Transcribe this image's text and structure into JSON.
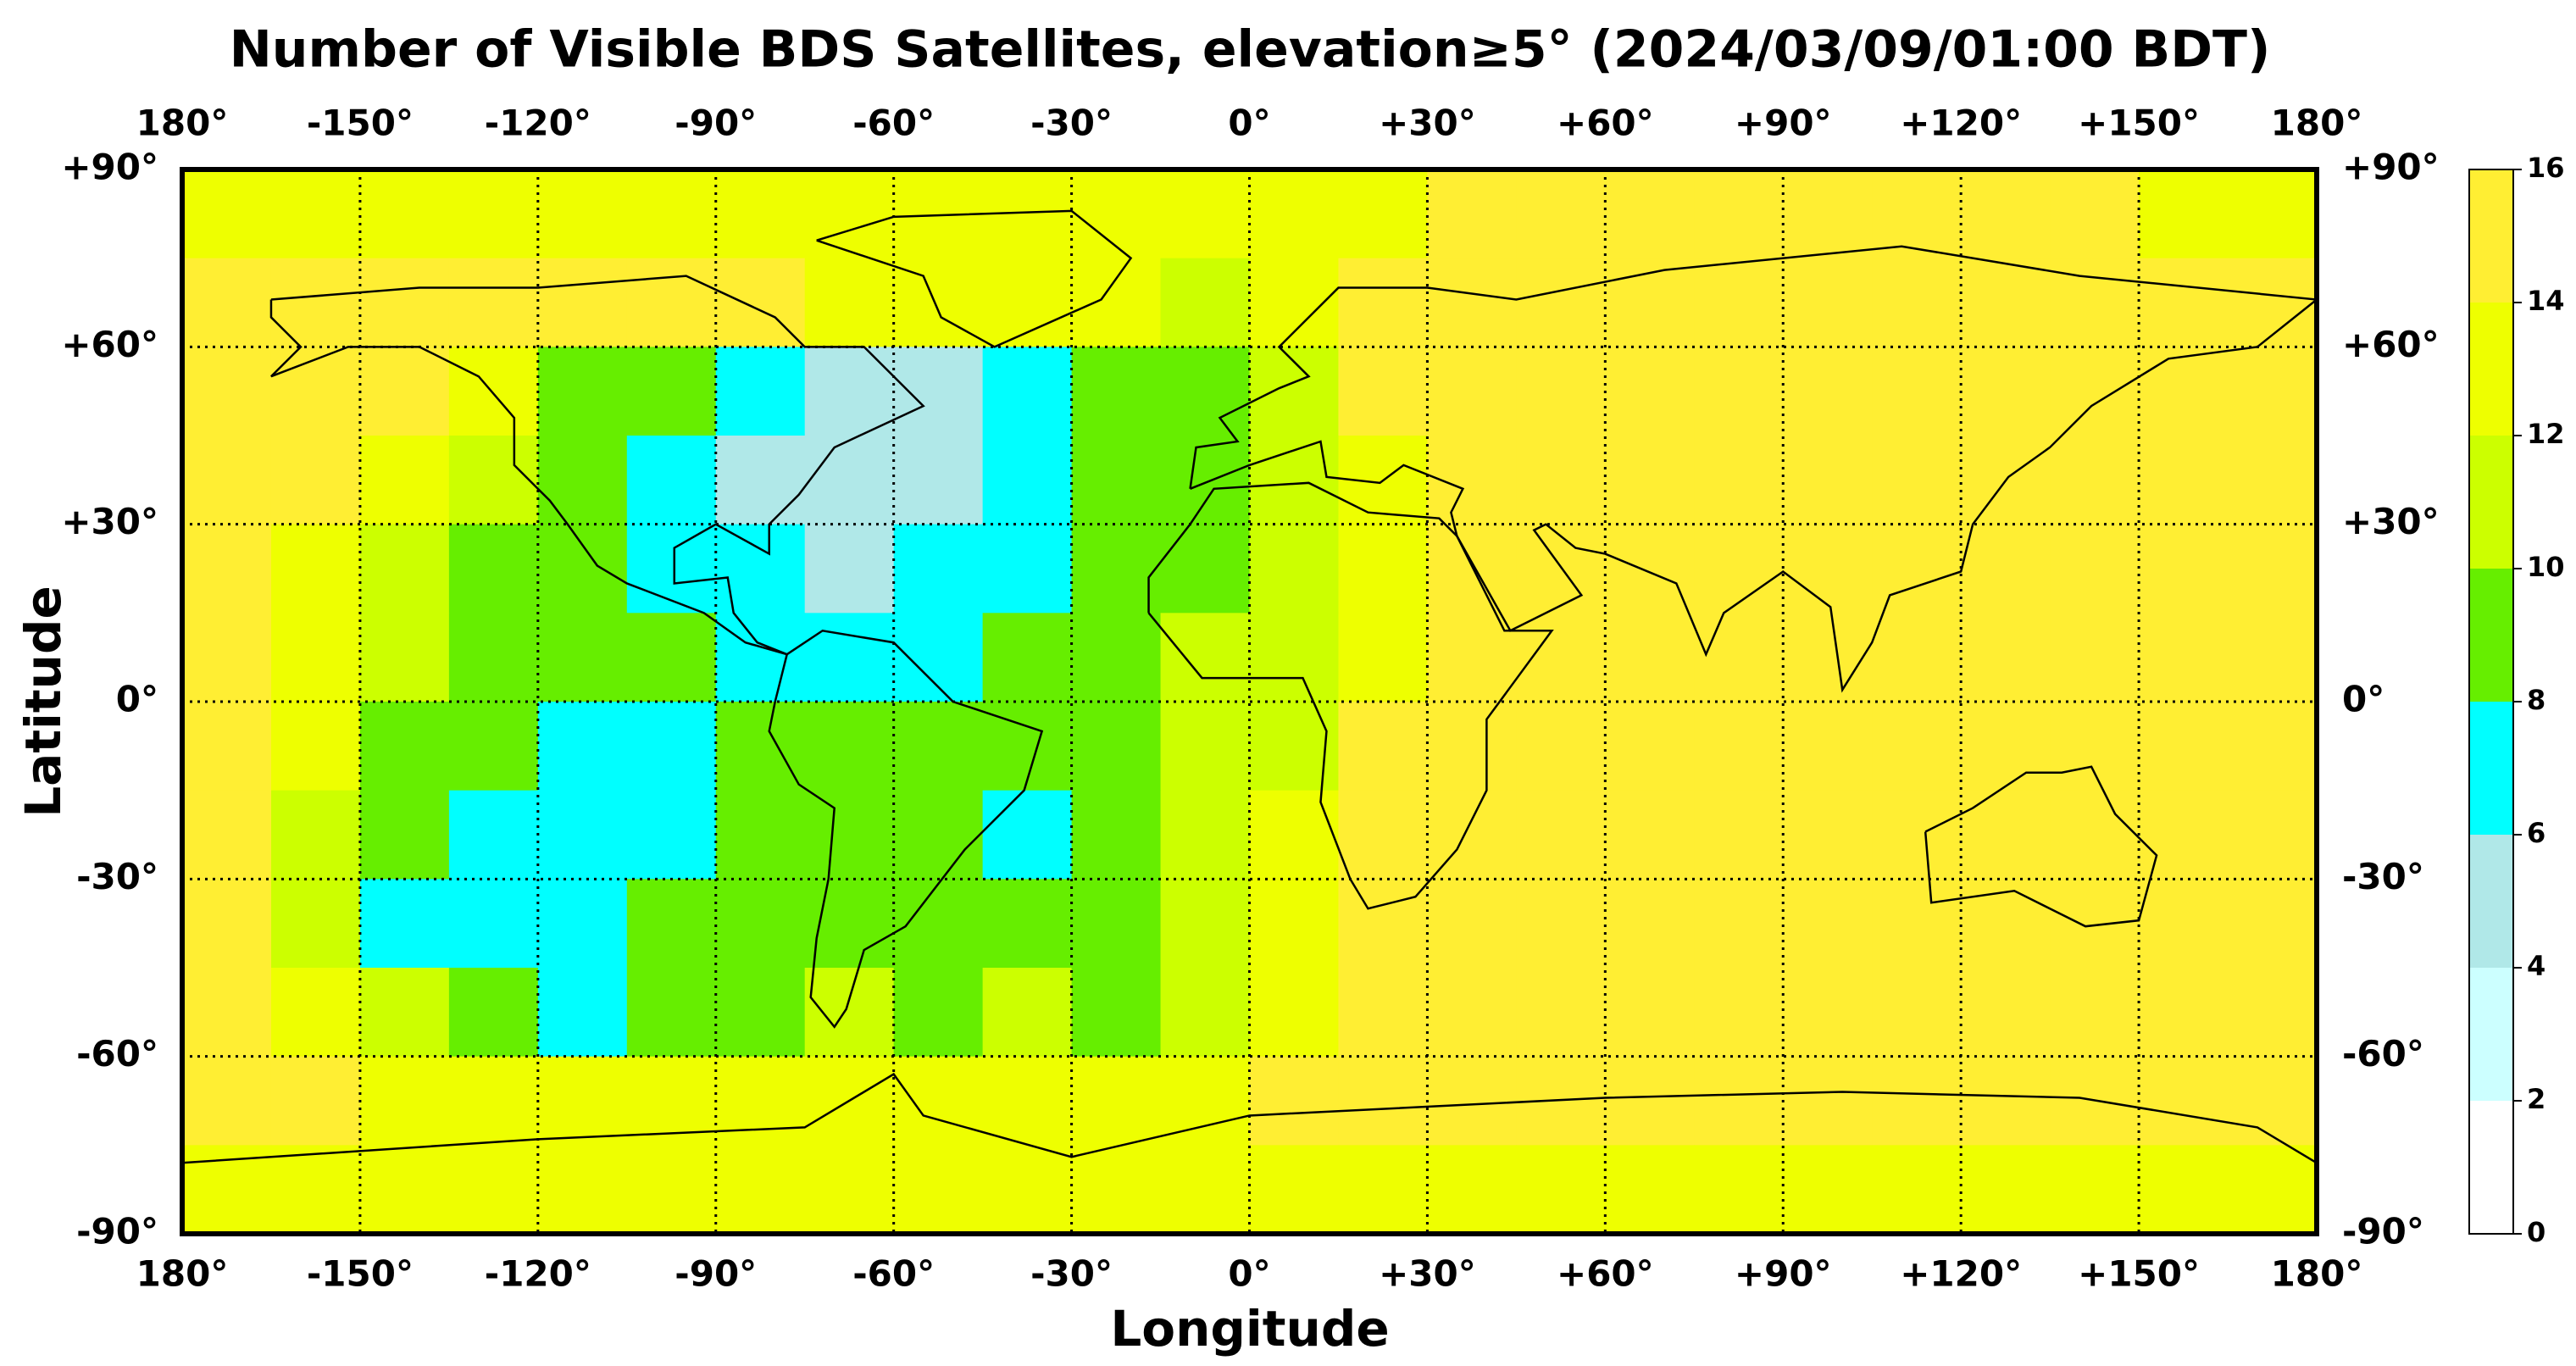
{
  "chart_data": {
    "type": "heatmap",
    "title": "Number of Visible BDS Satellites, elevation≥5° (2024/03/09/01:00 BDT)",
    "xlabel": "Longitude",
    "ylabel": "Latitude",
    "xlim": [
      -180,
      180
    ],
    "ylim": [
      -90,
      90
    ],
    "xticks": [
      {
        "value": -180,
        "label": "180°"
      },
      {
        "value": -150,
        "label": "-150°"
      },
      {
        "value": -120,
        "label": "-120°"
      },
      {
        "value": -90,
        "label": "-90°"
      },
      {
        "value": -60,
        "label": "-60°"
      },
      {
        "value": -30,
        "label": "-30°"
      },
      {
        "value": 0,
        "label": "0°"
      },
      {
        "value": 30,
        "label": "+30°"
      },
      {
        "value": 60,
        "label": "+60°"
      },
      {
        "value": 90,
        "label": "+90°"
      },
      {
        "value": 120,
        "label": "+120°"
      },
      {
        "value": 150,
        "label": "+150°"
      },
      {
        "value": 180,
        "label": "180°"
      }
    ],
    "yticks": [
      {
        "value": 90,
        "label": "+90°"
      },
      {
        "value": 60,
        "label": "+60°"
      },
      {
        "value": 30,
        "label": "+30°"
      },
      {
        "value": 0,
        "label": "0°"
      },
      {
        "value": -30,
        "label": "-30°"
      },
      {
        "value": -60,
        "label": "-60°"
      },
      {
        "value": -90,
        "label": "-90°"
      }
    ],
    "grid": true,
    "x": [
      -172.5,
      -157.5,
      -142.5,
      -127.5,
      -112.5,
      -97.5,
      -82.5,
      -67.5,
      -52.5,
      -37.5,
      -22.5,
      -7.5,
      7.5,
      22.5,
      37.5,
      52.5,
      67.5,
      82.5,
      97.5,
      112.5,
      127.5,
      142.5,
      157.5,
      172.5
    ],
    "y": [
      82.5,
      67.5,
      52.5,
      37.5,
      22.5,
      7.5,
      -7.5,
      -22.5,
      -37.5,
      -52.5,
      -67.5,
      -82.5
    ],
    "values": [
      [
        13,
        13,
        13,
        13,
        13,
        13,
        13,
        13,
        13,
        13,
        13,
        13,
        13,
        13,
        15,
        15,
        15,
        15,
        15,
        15,
        15,
        15,
        13,
        13
      ],
      [
        15,
        15,
        15,
        15,
        15,
        15,
        15,
        13,
        13,
        13,
        13,
        11,
        13,
        15,
        15,
        15,
        15,
        15,
        15,
        15,
        15,
        15,
        15,
        15
      ],
      [
        15,
        15,
        15,
        13,
        9,
        9,
        7,
        5,
        5,
        7,
        9,
        9,
        11,
        15,
        15,
        15,
        15,
        15,
        15,
        15,
        15,
        15,
        15,
        15
      ],
      [
        15,
        15,
        13,
        11,
        9,
        7,
        5,
        5,
        5,
        7,
        9,
        9,
        11,
        13,
        15,
        15,
        15,
        15,
        15,
        15,
        15,
        15,
        15,
        15
      ],
      [
        15,
        13,
        11,
        9,
        9,
        7,
        7,
        5,
        7,
        7,
        9,
        9,
        11,
        13,
        15,
        15,
        15,
        15,
        15,
        15,
        15,
        15,
        15,
        15
      ],
      [
        15,
        13,
        11,
        9,
        9,
        9,
        7,
        7,
        7,
        9,
        9,
        11,
        11,
        13,
        15,
        15,
        15,
        15,
        15,
        15,
        15,
        15,
        15,
        15
      ],
      [
        15,
        13,
        9,
        9,
        7,
        7,
        9,
        9,
        9,
        9,
        9,
        11,
        11,
        15,
        15,
        15,
        15,
        15,
        15,
        15,
        15,
        15,
        15,
        15
      ],
      [
        15,
        11,
        9,
        7,
        7,
        7,
        9,
        9,
        9,
        7,
        9,
        11,
        13,
        15,
        15,
        15,
        15,
        15,
        15,
        15,
        15,
        15,
        15,
        15
      ],
      [
        15,
        11,
        7,
        7,
        7,
        9,
        9,
        9,
        9,
        9,
        9,
        11,
        13,
        15,
        15,
        15,
        15,
        15,
        15,
        15,
        15,
        15,
        15,
        15
      ],
      [
        15,
        13,
        11,
        9,
        7,
        9,
        9,
        11,
        9,
        11,
        9,
        11,
        13,
        15,
        15,
        15,
        15,
        15,
        15,
        15,
        15,
        15,
        15,
        15
      ],
      [
        15,
        15,
        13,
        13,
        13,
        13,
        13,
        13,
        13,
        13,
        13,
        13,
        15,
        15,
        15,
        15,
        15,
        15,
        15,
        15,
        15,
        15,
        15,
        15
      ],
      [
        13,
        13,
        13,
        13,
        13,
        13,
        13,
        13,
        13,
        13,
        13,
        13,
        13,
        13,
        13,
        13,
        13,
        13,
        13,
        13,
        13,
        13,
        13,
        13
      ]
    ],
    "colorbar": {
      "ticks": [
        0,
        2,
        4,
        6,
        8,
        10,
        12,
        14,
        16
      ],
      "colors": [
        "#ffffff",
        "#ccffff",
        "#b0e8e8",
        "#00ffff",
        "#66ee00",
        "#ccff00",
        "#eeff00",
        "#ffee33"
      ]
    }
  }
}
